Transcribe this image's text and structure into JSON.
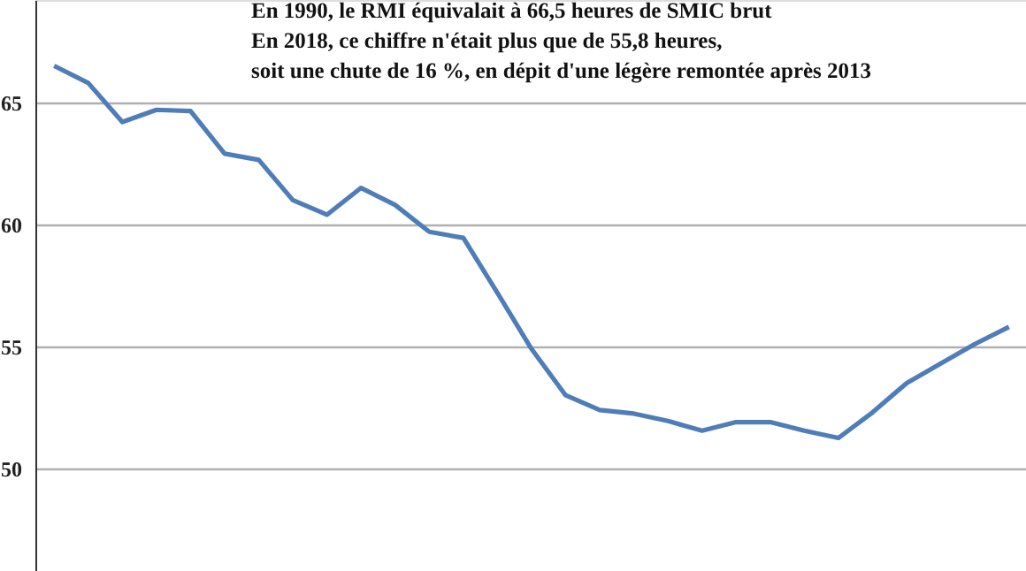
{
  "chart_data": {
    "type": "line",
    "annotations": [
      "En 1990, le RMI équivalait à 66,5 heures de SMIC brut",
      "En 2018, ce chiffre n'était plus que de 55,8 heures,",
      "soit une chute de 16 %, en dépit d'une légère remontée après 2013"
    ],
    "categories": [
      null,
      null,
      null,
      null,
      null,
      null,
      null,
      null,
      null,
      null,
      null,
      null,
      null,
      null,
      null,
      null,
      null,
      null,
      null,
      null,
      null,
      null,
      null,
      null,
      null,
      null,
      null,
      null,
      null
    ],
    "series": [
      {
        "color": "#4f7db8",
        "values": [
          66.5,
          65.8,
          64.2,
          64.7,
          64.65,
          62.9,
          62.65,
          61.0,
          60.4,
          61.5,
          60.8,
          59.7,
          59.45,
          57.2,
          54.9,
          53.0,
          52.4,
          52.25,
          51.95,
          51.55,
          51.9,
          51.9,
          51.55,
          51.25,
          52.3,
          53.5,
          54.3,
          55.1,
          55.8
        ]
      }
    ],
    "ylim": [
      45.8,
      69.2
    ],
    "yticks": [
      50,
      55,
      60,
      65
    ],
    "grid": "y",
    "tick_labels": "y",
    "marker": "none",
    "line_style": "solid"
  }
}
